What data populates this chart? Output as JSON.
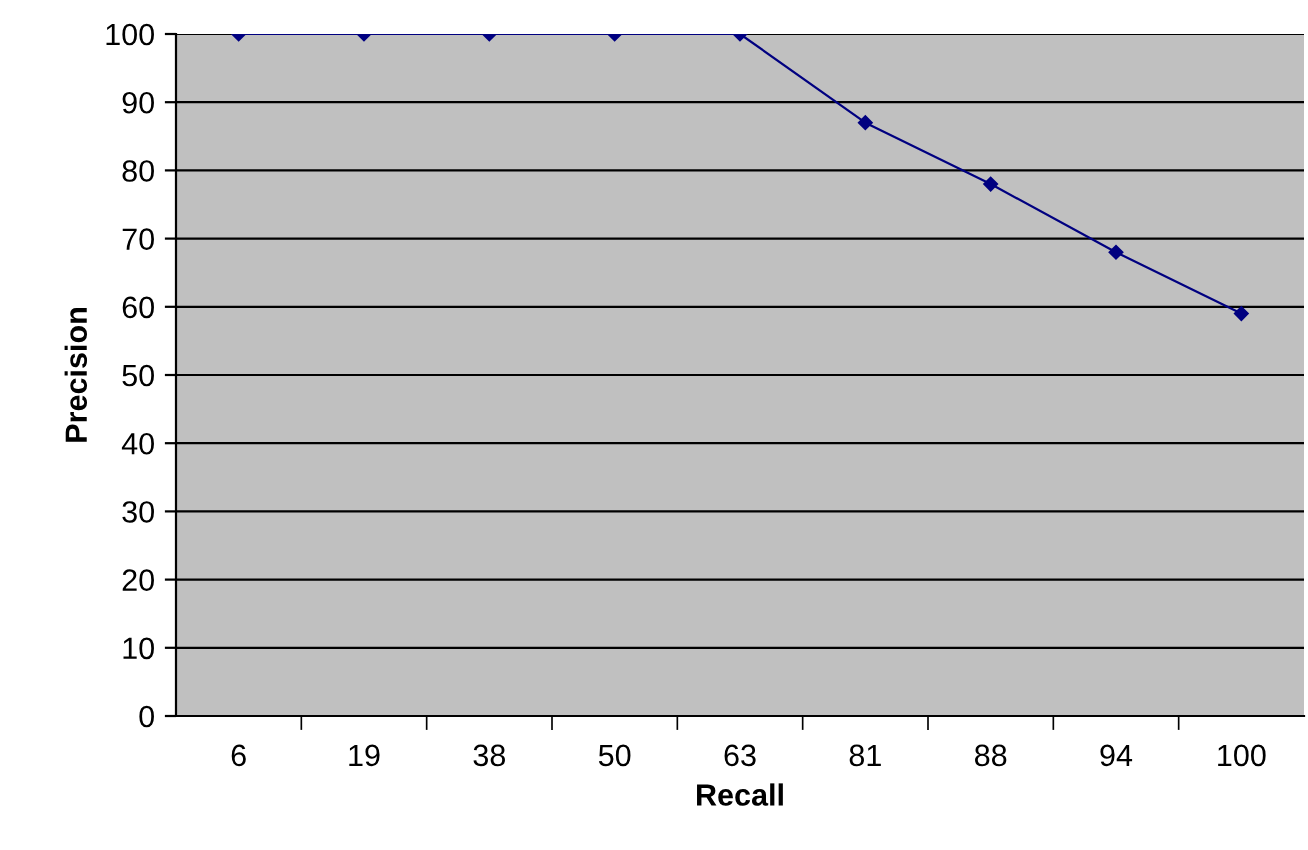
{
  "chart_data": {
    "type": "line",
    "xlabel": "Recall",
    "ylabel": "Precision",
    "categories": [
      "6",
      "19",
      "38",
      "50",
      "63",
      "81",
      "88",
      "94",
      "100"
    ],
    "series": [
      {
        "color": "#000080",
        "values": [
          100,
          100,
          100,
          100,
          100,
          87,
          78,
          68,
          59
        ]
      }
    ],
    "ylim": [
      0,
      100
    ],
    "yticks": [
      0,
      10,
      20,
      30,
      40,
      50,
      60,
      70,
      80,
      90,
      100
    ],
    "grid": "y",
    "marker": "diamond",
    "line_style": "solid"
  }
}
